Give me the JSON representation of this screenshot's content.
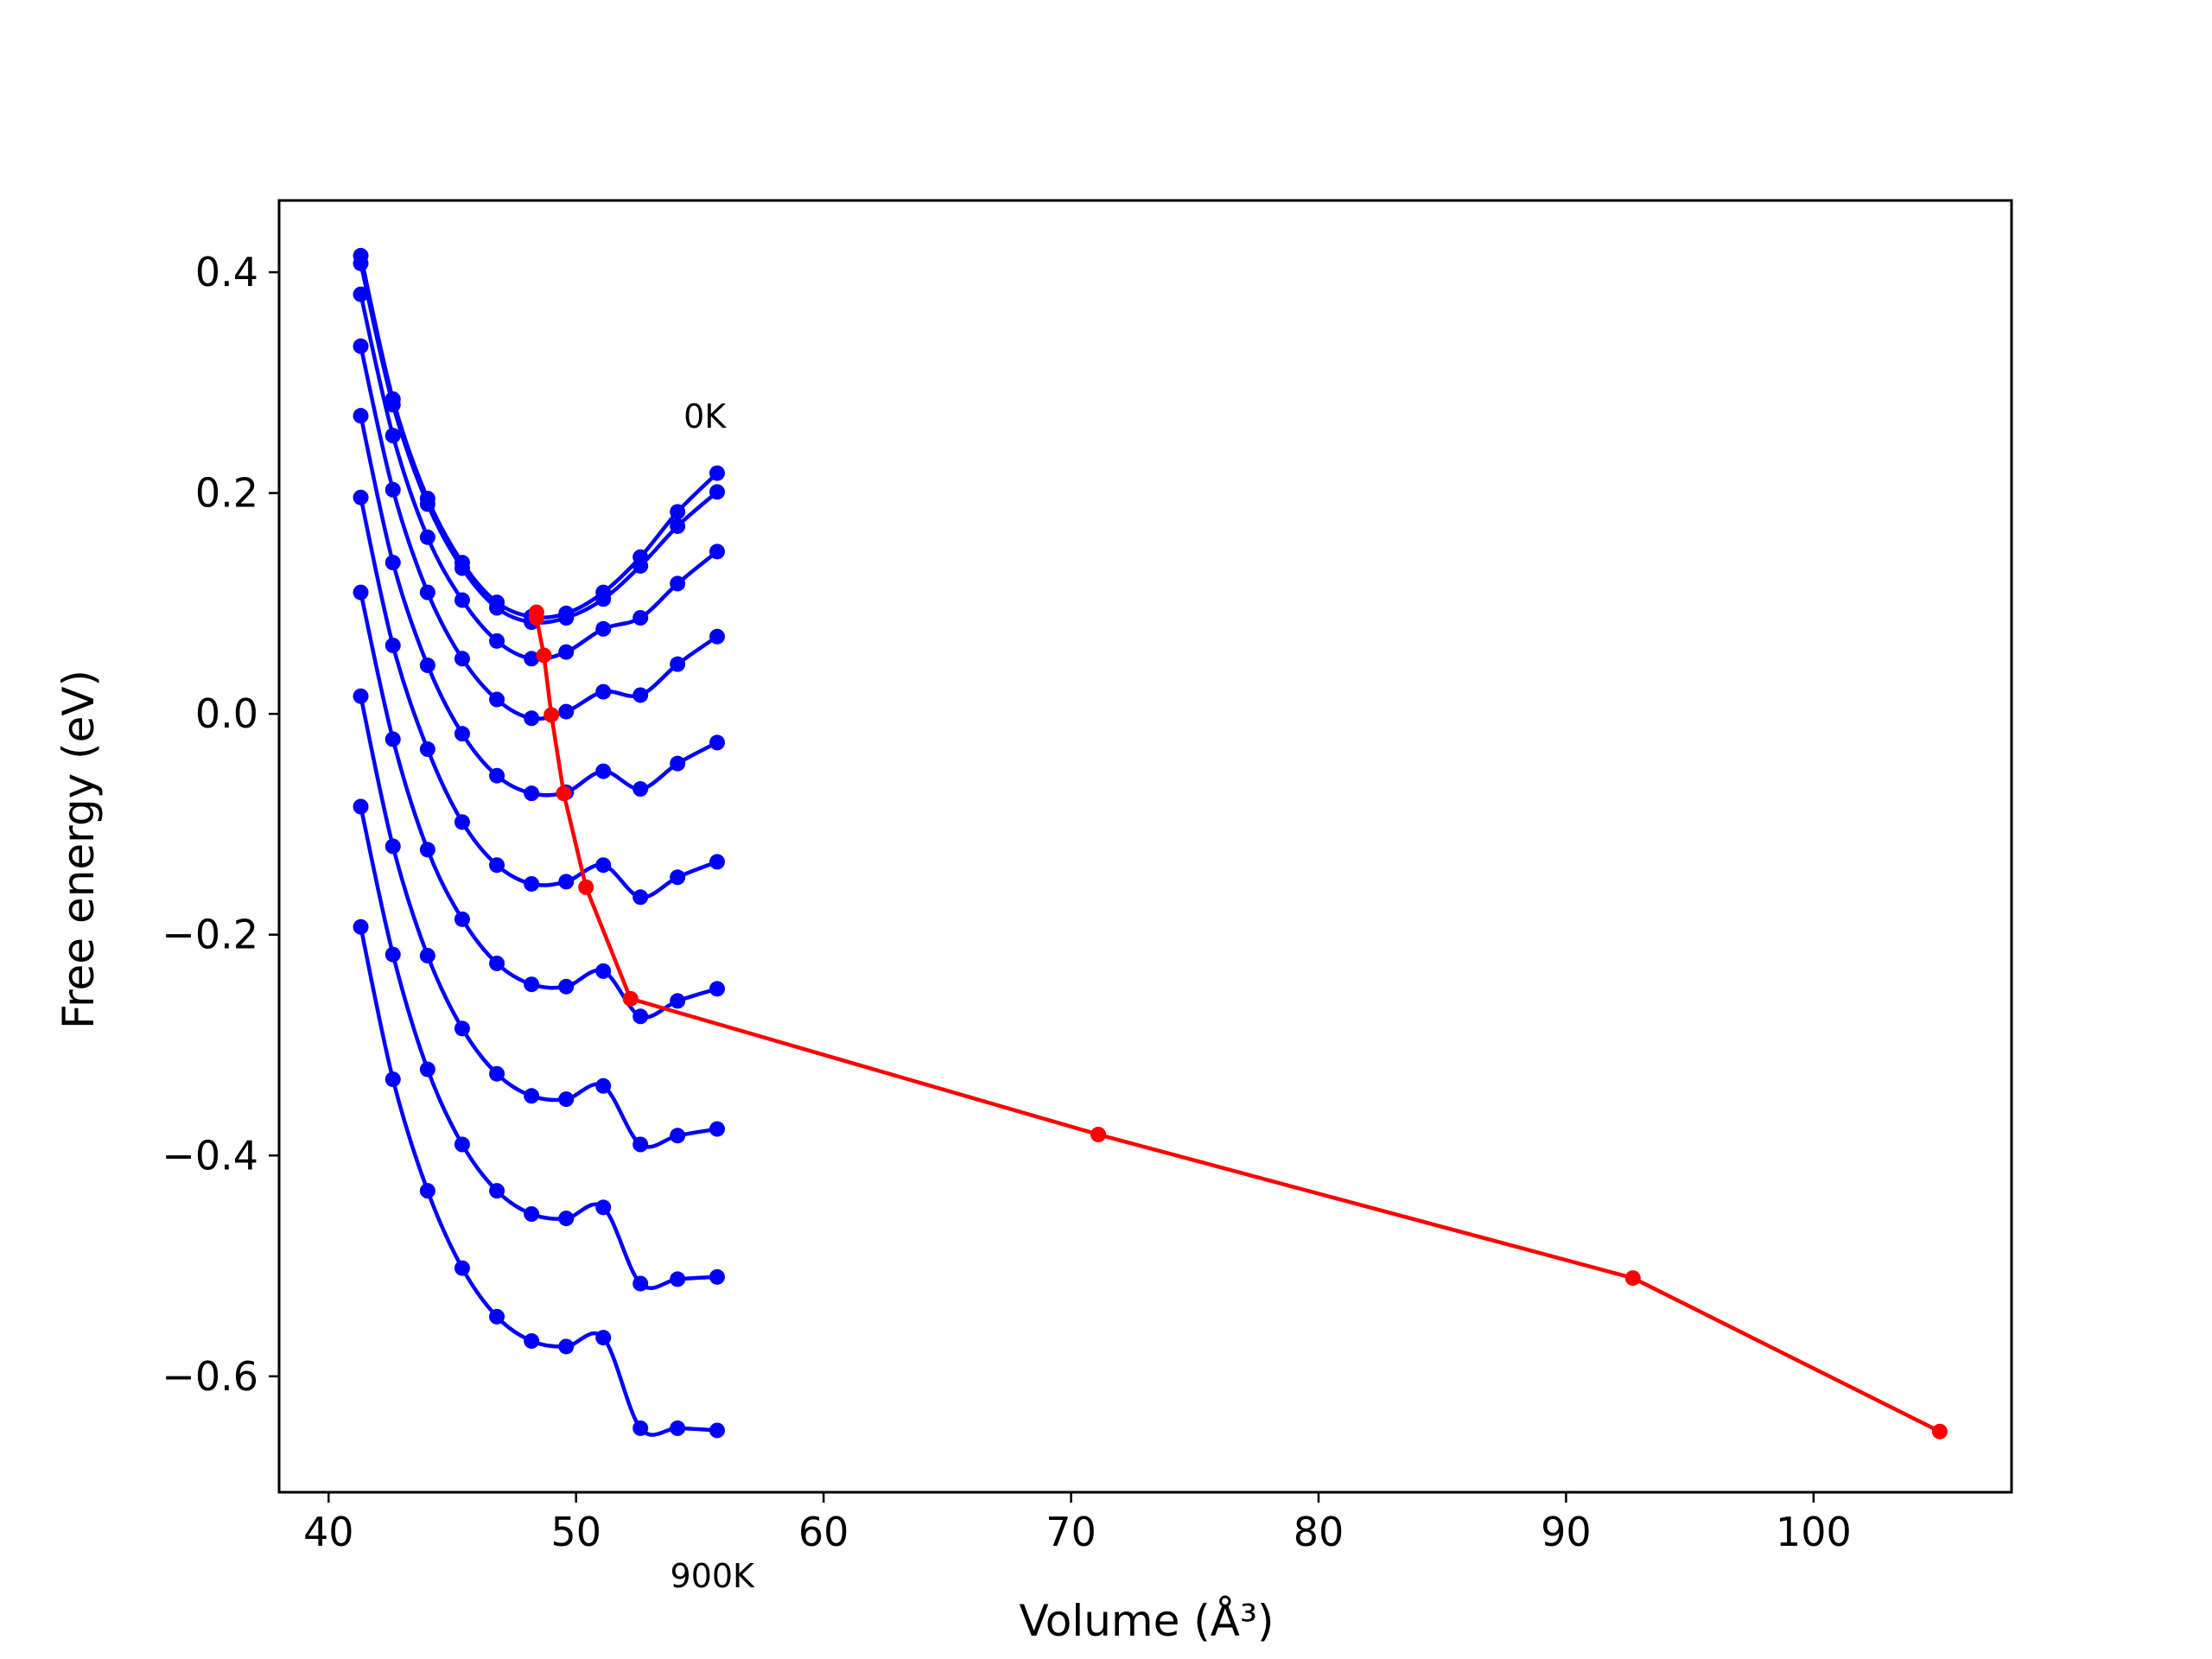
{
  "chart_data": {
    "type": "line",
    "title": "",
    "xlabel": "Volume (Å³)",
    "ylabel": "Free energy (eV)",
    "xlim": [
      38,
      108
    ],
    "ylim": [
      -0.705,
      0.465
    ],
    "x_ticks": [
      40,
      50,
      60,
      70,
      80,
      90,
      100
    ],
    "y_ticks": [
      -0.6,
      -0.4,
      -0.2,
      0.0,
      0.2,
      0.4
    ],
    "x_tick_labels": [
      "40",
      "50",
      "60",
      "70",
      "80",
      "90",
      "100"
    ],
    "y_tick_labels": [
      "−0.6",
      "−0.4",
      "−0.2",
      "0.0",
      "0.2",
      "0.4"
    ],
    "grid": false,
    "legend": "none",
    "annotations": [
      {
        "text": "0K",
        "x": 55.2,
        "y": 0.27
      },
      {
        "text": "900K",
        "x": 55.5,
        "y": -0.78
      }
    ],
    "colors": {
      "isotherms": "#0000ff",
      "minimum_path": "#ff0000",
      "axes": "#000000"
    },
    "volumes": [
      41.3,
      42.6,
      44.0,
      45.4,
      46.8,
      48.2,
      49.6,
      51.1,
      52.6,
      54.1,
      55.7
    ],
    "series": [
      {
        "values": [
          0.415,
          0.285,
          0.195,
          0.137,
          0.101,
          0.088,
          0.091,
          0.11,
          0.142,
          0.183,
          0.218
        ]
      },
      {
        "values": [
          0.408,
          0.28,
          0.19,
          0.132,
          0.096,
          0.083,
          0.087,
          0.104,
          0.134,
          0.17,
          0.201
        ]
      },
      {
        "values": [
          0.38,
          0.252,
          0.16,
          0.103,
          0.066,
          0.05,
          0.056,
          0.077,
          0.087,
          0.118,
          0.147
        ]
      },
      {
        "values": [
          0.333,
          0.203,
          0.11,
          0.05,
          0.013,
          -0.004,
          0.002,
          0.02,
          0.017,
          0.045,
          0.07
        ]
      },
      {
        "values": [
          0.27,
          0.137,
          0.044,
          -0.018,
          -0.056,
          -0.072,
          -0.071,
          -0.052,
          -0.068,
          -0.045,
          -0.026
        ]
      },
      {
        "values": [
          0.196,
          0.062,
          -0.032,
          -0.098,
          -0.137,
          -0.154,
          -0.152,
          -0.137,
          -0.166,
          -0.148,
          -0.134
        ]
      },
      {
        "values": [
          0.11,
          -0.023,
          -0.123,
          -0.186,
          -0.226,
          -0.245,
          -0.247,
          -0.233,
          -0.274,
          -0.26,
          -0.249
        ]
      },
      {
        "values": [
          0.016,
          -0.12,
          -0.219,
          -0.285,
          -0.326,
          -0.346,
          -0.349,
          -0.337,
          -0.39,
          -0.382,
          -0.376
        ]
      },
      {
        "values": [
          -0.084,
          -0.218,
          -0.322,
          -0.39,
          -0.432,
          -0.453,
          -0.457,
          -0.447,
          -0.516,
          -0.512,
          -0.51
        ]
      },
      {
        "values": [
          -0.193,
          -0.331,
          -0.432,
          -0.502,
          -0.546,
          -0.568,
          -0.573,
          -0.565,
          -0.647,
          -0.647,
          -0.649
        ]
      }
    ],
    "minimum_path": {
      "x": [
        48.4,
        48.4,
        48.7,
        49.0,
        49.5,
        50.4,
        52.2,
        71.1,
        92.7,
        105.1
      ],
      "y": [
        0.092,
        0.087,
        0.053,
        -0.001,
        -0.072,
        -0.157,
        -0.258,
        -0.381,
        -0.511,
        -0.65
      ]
    }
  }
}
